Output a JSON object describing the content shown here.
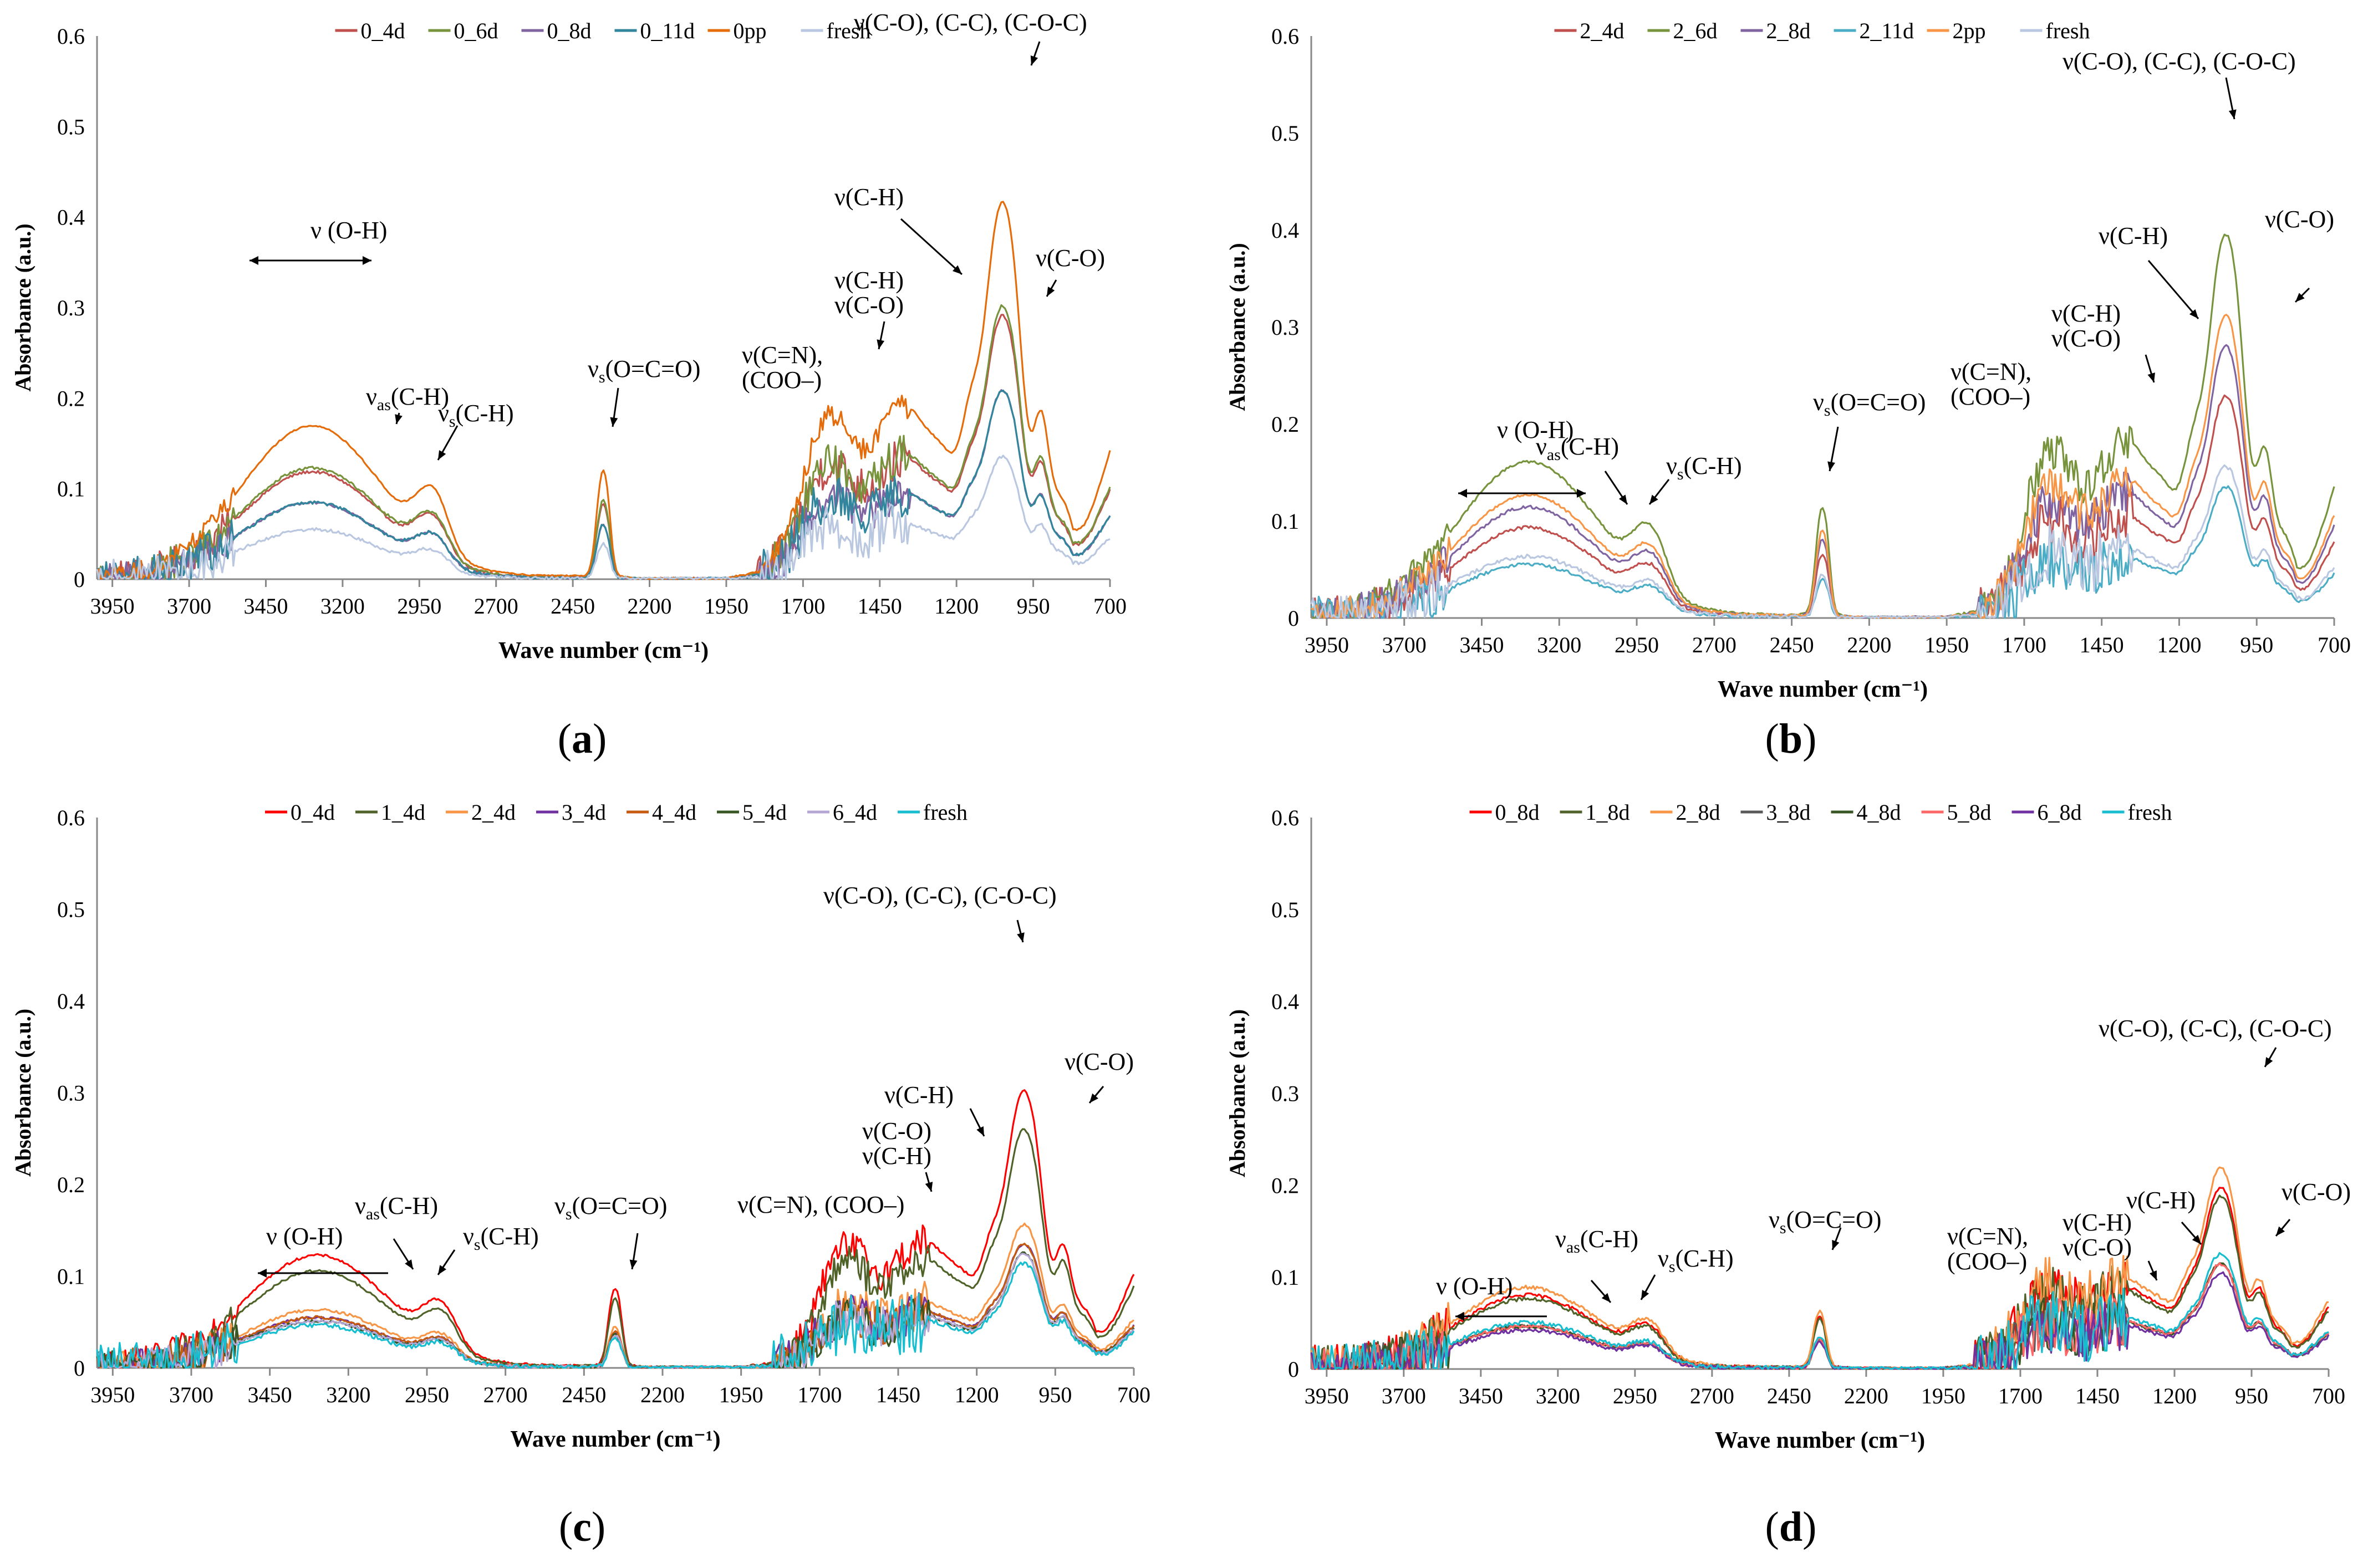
{
  "figure": {
    "panel_labels": [
      {
        "open": "(",
        "letter": "a",
        "close": ")"
      },
      {
        "open": "(",
        "letter": "b",
        "close": ")"
      },
      {
        "open": "(",
        "letter": "c",
        "close": ")"
      },
      {
        "open": "(",
        "letter": "d",
        "close": ")"
      }
    ]
  },
  "chart_data": [
    {
      "id": "a",
      "type": "line",
      "xlabel": "Wave number (cm⁻¹)",
      "ylabel": "Absorbance (a.u.)",
      "xlim": [
        4000,
        700
      ],
      "ylim": [
        0,
        0.6
      ],
      "x_ticks": [
        3950,
        3700,
        3450,
        3200,
        2950,
        2700,
        2450,
        2200,
        1950,
        1700,
        1450,
        1200,
        950,
        700
      ],
      "y_ticks": [
        0,
        0.1,
        0.2,
        0.3,
        0.4,
        0.5,
        0.6
      ],
      "y_tick_labels": [
        "0",
        "0.1",
        "0.2",
        "0.3",
        "0.4",
        "0.5",
        "0.6"
      ],
      "legend_position": "top-center",
      "series": [
        {
          "name": "0_4d",
          "color": "#c0504d",
          "scale": 0.28,
          "noise": 0.35
        },
        {
          "name": "0_6d",
          "color": "#77933c",
          "scale": 0.29,
          "noise": 0.35
        },
        {
          "name": "0_8d",
          "color": "#8064a2",
          "scale": 0.2,
          "noise": 0.3
        },
        {
          "name": "0_11d",
          "color": "#31859c",
          "scale": 0.2,
          "noise": 0.4
        },
        {
          "name": "0pp",
          "color": "#e46c0a",
          "scale": 0.4,
          "noise": 0.2
        },
        {
          "name": "fresh",
          "color": "#b9c7e0",
          "scale": 0.13,
          "noise": 0.4
        }
      ],
      "annotations": [
        {
          "text": "ν (O-H)"
        },
        {
          "base": "ν",
          "sub": "as",
          "rest": "(C-H)"
        },
        {
          "base": "ν",
          "sub": "s",
          "rest": "(C-H)"
        },
        {
          "base": "ν",
          "sub": "s",
          "rest": "(O=C=O)"
        },
        {
          "text": "ν(C=N),"
        },
        {
          "text": "(COO–)"
        },
        {
          "text": "ν(C-H)"
        },
        {
          "text": "ν(C-O)"
        },
        {
          "text": "ν(C-H)"
        },
        {
          "text": "ν(C-O), (C-C), (C-O-C)"
        },
        {
          "text": "ν(C-O)"
        }
      ]
    },
    {
      "id": "b",
      "type": "line",
      "xlabel": "Wave number (cm⁻¹)",
      "ylabel": "Absorbance (a.u.)",
      "xlim": [
        4000,
        700
      ],
      "ylim": [
        0,
        0.6
      ],
      "x_ticks": [
        3950,
        3700,
        3450,
        3200,
        2950,
        2700,
        2450,
        2200,
        1950,
        1700,
        1450,
        1200,
        950,
        700
      ],
      "y_ticks": [
        0,
        0.1,
        0.2,
        0.3,
        0.4,
        0.5,
        0.6
      ],
      "y_tick_labels": [
        "0",
        "0.1",
        "0.2",
        "0.3",
        "0.4",
        "0.5",
        "0.6"
      ],
      "legend_position": "top-center",
      "series": [
        {
          "name": "2_4d",
          "color": "#c0504d",
          "scale": 0.22,
          "noise": 0.4
        },
        {
          "name": "2_6d",
          "color": "#77933c",
          "scale": 0.38,
          "noise": 0.3
        },
        {
          "name": "2_8d",
          "color": "#8064a2",
          "scale": 0.27,
          "noise": 0.35
        },
        {
          "name": "2_11d",
          "color": "#4bacc6",
          "scale": 0.13,
          "noise": 0.4
        },
        {
          "name": "2pp",
          "color": "#f79646",
          "scale": 0.3,
          "noise": 0.3
        },
        {
          "name": "fresh",
          "color": "#b9c7e0",
          "scale": 0.15,
          "noise": 0.45
        }
      ],
      "annotations": [
        {
          "text": "ν (O-H)"
        },
        {
          "base": "ν",
          "sub": "as",
          "rest": "(C-H)"
        },
        {
          "base": "ν",
          "sub": "s",
          "rest": "(C-H)"
        },
        {
          "base": "ν",
          "sub": "s",
          "rest": "(O=C=O)"
        },
        {
          "text": "ν(C=N),"
        },
        {
          "text": "(COO–)"
        },
        {
          "text": "ν(C-H)"
        },
        {
          "text": "ν(C-O)"
        },
        {
          "text": "ν(C-H)"
        },
        {
          "text": "ν(C-O), (C-C), (C-O-C)"
        },
        {
          "text": "ν(C-O)"
        }
      ]
    },
    {
      "id": "c",
      "type": "line",
      "xlabel": "Wave number (cm⁻¹)",
      "ylabel": "Absorbance (a.u.)",
      "xlim": [
        4000,
        700
      ],
      "ylim": [
        0,
        0.6
      ],
      "x_ticks": [
        3950,
        3700,
        3450,
        3200,
        2950,
        2700,
        2450,
        2200,
        1950,
        1700,
        1450,
        1200,
        950,
        700
      ],
      "y_ticks": [
        0,
        0.1,
        0.2,
        0.3,
        0.4,
        0.5,
        0.6
      ],
      "y_tick_labels": [
        "0",
        "0.1",
        "0.2",
        "0.3",
        "0.4",
        "0.5",
        "0.6"
      ],
      "legend_position": "top-center",
      "series": [
        {
          "name": "0_4d",
          "color": "#ff0000",
          "scale": 0.29,
          "noise": 0.3
        },
        {
          "name": "1_4d",
          "color": "#4f6228",
          "scale": 0.25,
          "noise": 0.3
        },
        {
          "name": "2_4d",
          "color": "#f79646",
          "scale": 0.15,
          "noise": 0.35
        },
        {
          "name": "3_4d",
          "color": "#7030a0",
          "scale": 0.13,
          "noise": 0.35
        },
        {
          "name": "4_4d",
          "color": "#c55a11",
          "scale": 0.13,
          "noise": 0.35
        },
        {
          "name": "5_4d",
          "color": "#375623",
          "scale": 0.12,
          "noise": 0.35
        },
        {
          "name": "6_4d",
          "color": "#b4a7d6",
          "scale": 0.12,
          "noise": 0.35
        },
        {
          "name": "fresh",
          "color": "#17becf",
          "scale": 0.11,
          "noise": 0.55
        }
      ],
      "annotations": [
        {
          "text": "ν (O-H)"
        },
        {
          "base": "ν",
          "sub": "as",
          "rest": "(C-H)"
        },
        {
          "base": "ν",
          "sub": "s",
          "rest": "(C-H)"
        },
        {
          "base": "ν",
          "sub": "s",
          "rest": "(O=C=O)"
        },
        {
          "text": "ν(C=N), (COO–)"
        },
        {
          "text": "ν(C-H)"
        },
        {
          "text": "ν(C-O)"
        },
        {
          "text": "ν(C-H)"
        },
        {
          "text": "ν(C-O), (C-C), (C-O-C)"
        },
        {
          "text": "ν(C-O)"
        }
      ]
    },
    {
      "id": "d",
      "type": "line",
      "xlabel": "Wave number (cm⁻¹)",
      "ylabel": "Absorbance (a.u.)",
      "xlim": [
        4000,
        700
      ],
      "ylim": [
        0,
        0.6
      ],
      "x_ticks": [
        3950,
        3700,
        3450,
        3200,
        2950,
        2700,
        2450,
        2200,
        1950,
        1700,
        1450,
        1200,
        950,
        700
      ],
      "y_ticks": [
        0,
        0.1,
        0.2,
        0.3,
        0.4,
        0.5,
        0.6
      ],
      "y_tick_labels": [
        "0",
        "0.1",
        "0.2",
        "0.3",
        "0.4",
        "0.5",
        "0.6"
      ],
      "legend_position": "top-center",
      "series": [
        {
          "name": "0_8d",
          "color": "#ff0000",
          "scale": 0.19,
          "noise": 0.45
        },
        {
          "name": "1_8d",
          "color": "#4f6228",
          "scale": 0.18,
          "noise": 0.45
        },
        {
          "name": "2_8d",
          "color": "#f79646",
          "scale": 0.21,
          "noise": 0.45
        },
        {
          "name": "3_8d",
          "color": "#595959",
          "scale": 0.11,
          "noise": 0.45
        },
        {
          "name": "4_8d",
          "color": "#375623",
          "scale": 0.11,
          "noise": 0.45
        },
        {
          "name": "5_8d",
          "color": "#ff6666",
          "scale": 0.11,
          "noise": 0.45
        },
        {
          "name": "6_8d",
          "color": "#7030a0",
          "scale": 0.1,
          "noise": 0.45
        },
        {
          "name": "fresh",
          "color": "#17becf",
          "scale": 0.12,
          "noise": 0.55
        }
      ],
      "annotations": [
        {
          "text": "ν (O-H)"
        },
        {
          "base": "ν",
          "sub": "as",
          "rest": "(C-H)"
        },
        {
          "base": "ν",
          "sub": "s",
          "rest": "(C-H)"
        },
        {
          "base": "ν",
          "sub": "s",
          "rest": "(O=C=O)"
        },
        {
          "text": "ν(C=N),"
        },
        {
          "text": "(COO–)"
        },
        {
          "text": "ν(C-H)"
        },
        {
          "text": "ν(C-O)"
        },
        {
          "text": "ν(C-H)"
        },
        {
          "text": "ν(C-O), (C-C), (C-O-C)"
        },
        {
          "text": "ν(C-O)"
        }
      ]
    }
  ]
}
